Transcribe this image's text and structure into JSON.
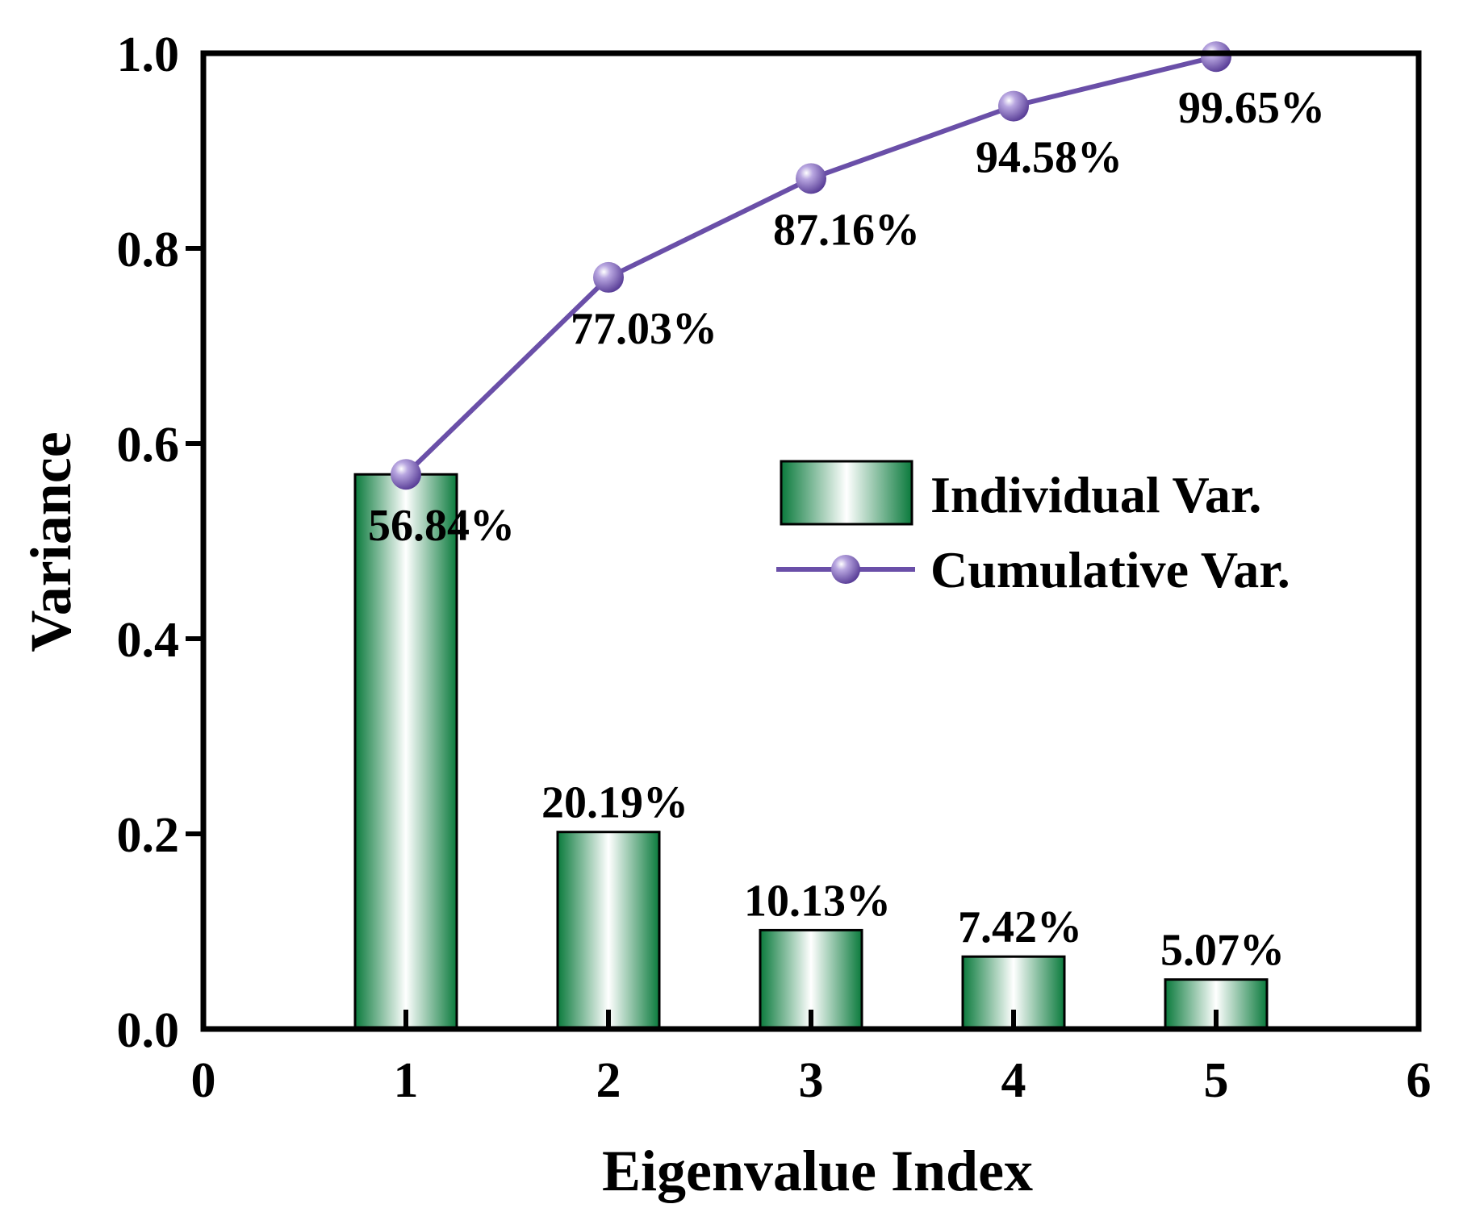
{
  "chart_data": {
    "type": "bar",
    "xlabel": "Eigenvalue Index",
    "ylabel": "Variance",
    "xlim": [
      0,
      6
    ],
    "ylim": [
      0,
      1.0
    ],
    "xticks": [
      "0",
      "1",
      "2",
      "3",
      "4",
      "5",
      "6"
    ],
    "yticks": [
      "0.0",
      "0.2",
      "0.4",
      "0.6",
      "0.8",
      "1.0"
    ],
    "grid": false,
    "legend_position": "center-right",
    "series": [
      {
        "name": "Individual Var.",
        "type": "bar",
        "x": [
          1,
          2,
          3,
          4,
          5
        ],
        "values": [
          0.5684,
          0.2019,
          0.1013,
          0.0742,
          0.0507
        ],
        "labels": [
          "56.84%",
          "20.19%",
          "10.13%",
          "7.42%",
          "5.07%"
        ],
        "color": "#0a7a3c"
      },
      {
        "name": "Cumulative Var.",
        "type": "line",
        "x": [
          1,
          2,
          3,
          4,
          5
        ],
        "values": [
          0.5684,
          0.7703,
          0.8716,
          0.9458,
          0.9965
        ],
        "labels": [
          "56.84%",
          "77.03%",
          "87.16%",
          "94.58%",
          "99.65%"
        ],
        "color": "#6a4fa8"
      }
    ]
  }
}
